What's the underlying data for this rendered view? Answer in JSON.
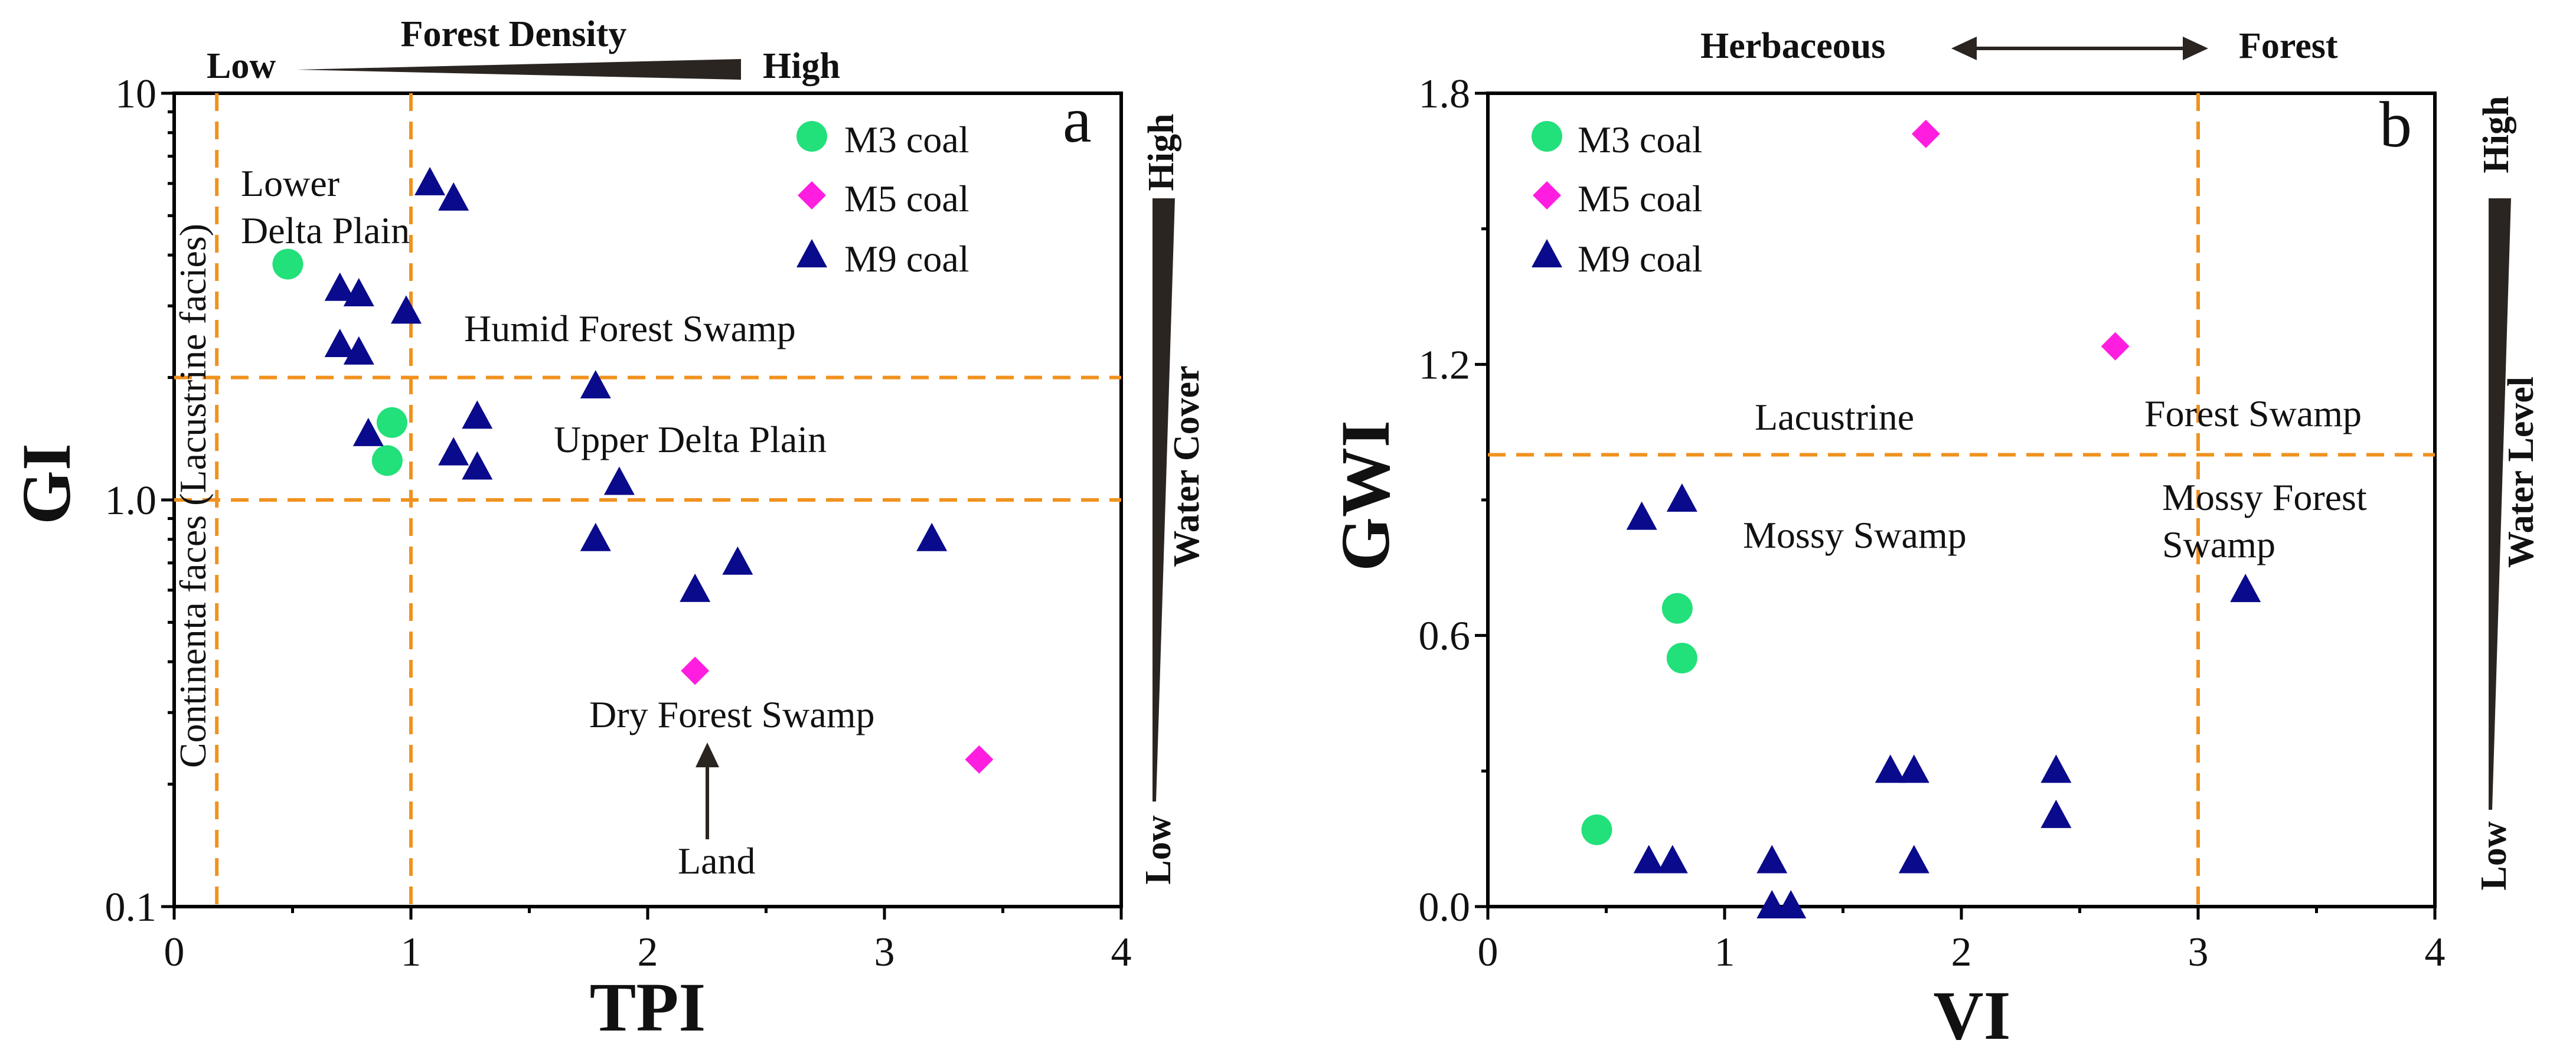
{
  "colors": {
    "m3": "#22e07a",
    "m5": "#ff1ee0",
    "m9": "#0a0a8c",
    "guide": "#f0921e",
    "dark": "#2b2522"
  },
  "chart_data": [
    {
      "type": "scatter",
      "panel": "a",
      "xlabel": "TPI",
      "ylabel": "GI",
      "xlim": [
        0,
        4
      ],
      "ylim": [
        0.1,
        10
      ],
      "yscale": "log",
      "xticks": [
        "0",
        "1",
        "2",
        "3",
        "4"
      ],
      "yticks": [
        "0.1",
        "1.0",
        "10"
      ],
      "legend_position": "top-right",
      "guides": {
        "x": [
          0.18,
          1.0
        ],
        "y": [
          1.0,
          2.0
        ]
      },
      "top_scale": {
        "title": "Forest Density",
        "low": "Low",
        "high": "High"
      },
      "side_scale": {
        "title": "Water  Cover",
        "low": "Low",
        "high": "High"
      },
      "labels": {
        "lower_delta_1": "Lower",
        "lower_delta_2": "Delta Plain",
        "humid": "Humid Forest Swamp",
        "upper_delta": "Upper Delta Plain",
        "dry": "Dry Forest Swamp",
        "land": "Land",
        "facies": "Continenta faces (Lacustrine facies)"
      },
      "series": [
        {
          "name": "M3 coal",
          "marker": "circle",
          "x": [
            0.48,
            0.92,
            0.9
          ],
          "y": [
            3.8,
            1.55,
            1.25
          ]
        },
        {
          "name": "M5 coal",
          "marker": "diamond",
          "x": [
            2.2,
            3.4
          ],
          "y": [
            0.38,
            0.23
          ]
        },
        {
          "name": "M9 coal",
          "marker": "triangle",
          "x": [
            1.08,
            1.18,
            0.7,
            0.78,
            0.98,
            0.7,
            0.78,
            0.82,
            1.28,
            1.18,
            1.28,
            1.78,
            1.88,
            1.78,
            2.2,
            2.38,
            3.2
          ],
          "y": [
            6.0,
            5.5,
            3.3,
            3.2,
            2.9,
            2.4,
            2.3,
            1.45,
            1.6,
            1.3,
            1.2,
            1.9,
            1.1,
            0.8,
            0.6,
            0.7,
            0.8
          ]
        }
      ]
    },
    {
      "type": "scatter",
      "panel": "b",
      "xlabel": "VI",
      "ylabel": "GWI",
      "xlim": [
        0,
        4
      ],
      "ylim": [
        0,
        1.8
      ],
      "yscale": "linear",
      "xticks": [
        "0",
        "1",
        "2",
        "3",
        "4"
      ],
      "yticks": [
        "0.0",
        "0.6",
        "1.2",
        "1.8"
      ],
      "legend_position": "top-left",
      "guides": {
        "x": [
          3.0
        ],
        "y": [
          1.0
        ]
      },
      "top_scale": {
        "left": "Herbaceous",
        "right": "Forest"
      },
      "side_scale": {
        "title": "Water  Level",
        "low": "Low",
        "high": "High"
      },
      "labels": {
        "lacustrine": "Lacustrine",
        "forest_swamp": "Forest Swamp",
        "mossy_swamp": "Mossy Swamp",
        "mossy_forest_1": "Mossy Forest",
        "mossy_forest_2": "Swamp"
      },
      "series": [
        {
          "name": "M3 coal",
          "marker": "circle",
          "x": [
            0.8,
            0.82,
            0.46
          ],
          "y": [
            0.66,
            0.55,
            0.17
          ]
        },
        {
          "name": "M5 coal",
          "marker": "diamond",
          "x": [
            1.85,
            2.65
          ],
          "y": [
            1.71,
            1.24
          ]
        },
        {
          "name": "M9 coal",
          "marker": "triangle",
          "x": [
            0.82,
            0.65,
            0.68,
            0.78,
            1.2,
            1.2,
            1.28,
            1.7,
            1.8,
            1.8,
            2.4,
            2.4,
            3.2
          ],
          "y": [
            0.9,
            0.86,
            0.1,
            0.1,
            0.1,
            0.0,
            0.0,
            0.3,
            0.3,
            0.1,
            0.3,
            0.2,
            0.7
          ]
        }
      ]
    }
  ]
}
